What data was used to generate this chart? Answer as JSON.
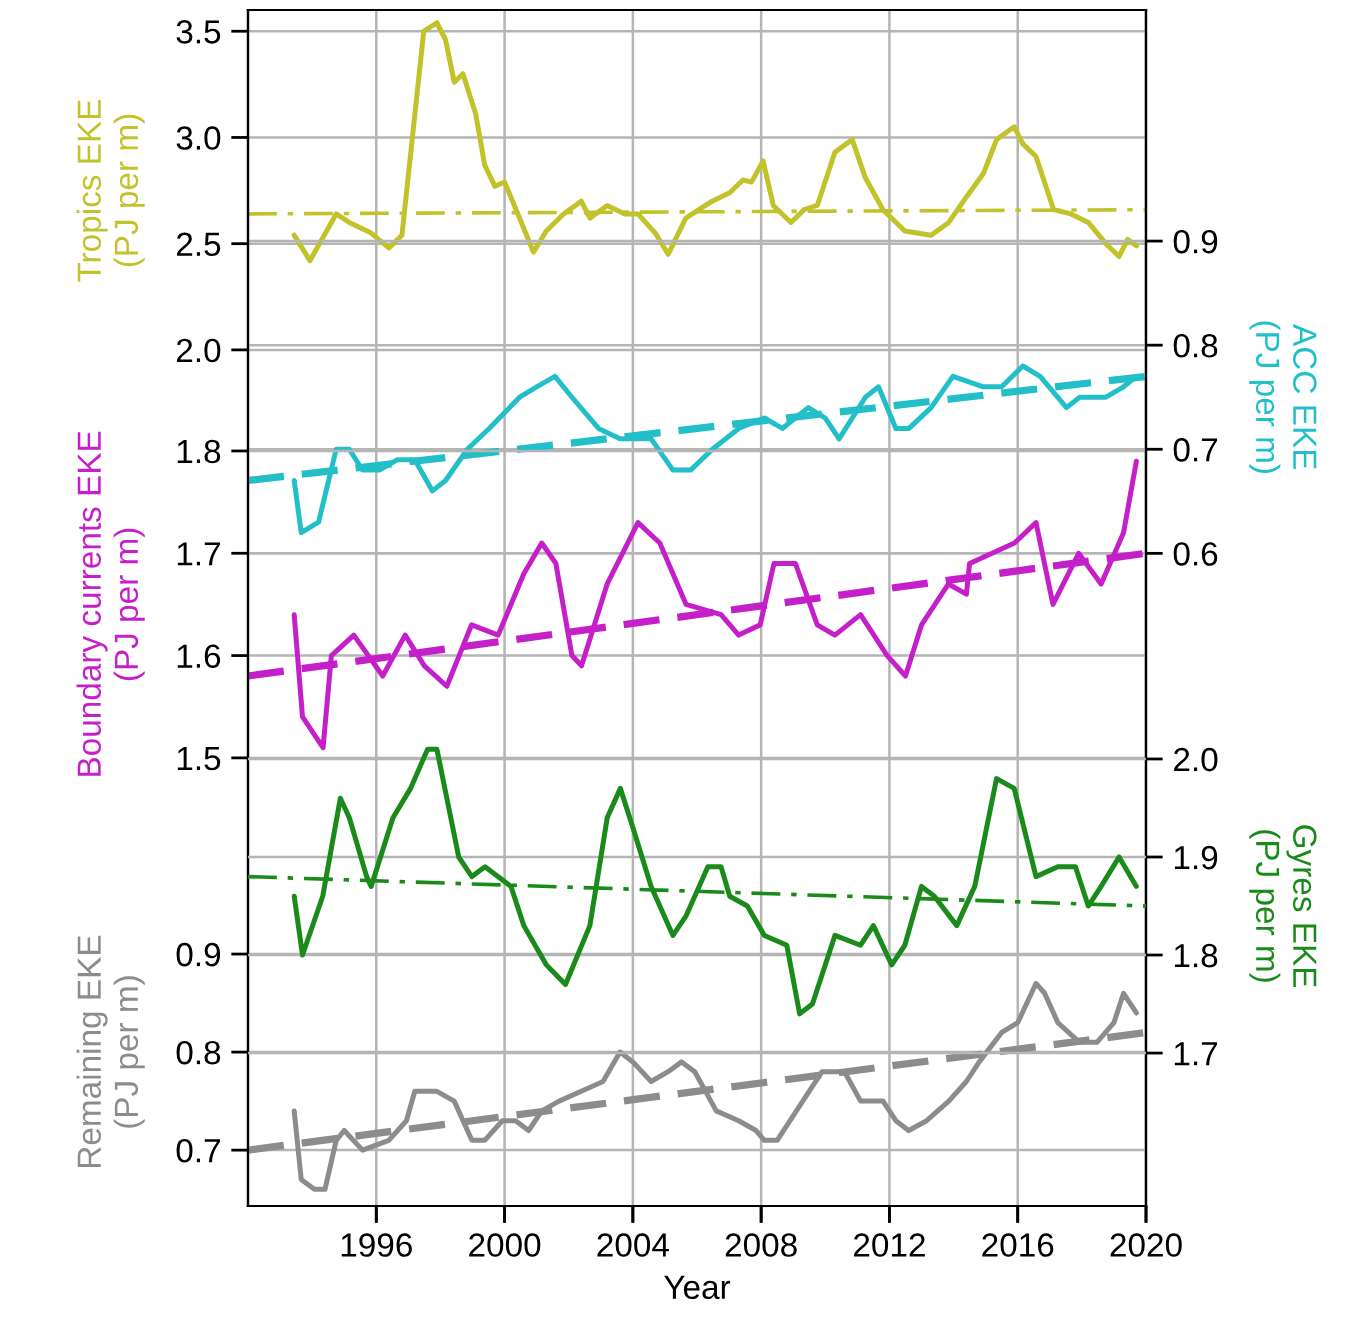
{
  "chart_data": [
    {
      "type": "line",
      "tick_labels": "y",
      "ylabel": "Tropics EKE\n(PJ per m)",
      "y2label": "ACC EKE\n(PJ per m)",
      "y3label": "Boundary currents EKE\n(PJ per m)",
      "xlim": [
        1992,
        2020
      ],
      "xticks": [
        1996,
        2000,
        2004,
        2008,
        2012,
        2016,
        2020
      ],
      "ylim": [
        -2.03,
        3.6
      ],
      "yticks": [
        {
          "value": 2,
          "label": "2.0"
        },
        2.5,
        {
          "value": 3,
          "label": "3.0"
        },
        3.5
      ],
      "y2lim": [
        -0.027,
        1.122
      ],
      "y2ticks": [
        0.6,
        0.7,
        0.8,
        0.9
      ],
      "y3lim": [
        1.062,
        2.231
      ],
      "y3ticks": [
        1.5,
        1.6,
        1.7,
        1.8
      ],
      "grid": true,
      "series": [
        {
          "axis": "y",
          "color": "#c2c22a",
          "x": [
            1993.44,
            1993.93,
            1994.75,
            1995.16,
            1995.84,
            1996.39,
            1996.8,
            1997.48,
            1997.89,
            1998.16,
            1998.43,
            1998.7,
            1999.1,
            1999.38,
            1999.7,
            2000.0,
            2000.47,
            2000.9,
            2001.3,
            2001.84,
            2002.39,
            2002.66,
            2003.2,
            2003.75,
            2004.16,
            2004.7,
            2005.1,
            2005.65,
            2006.47,
            2007.02,
            2007.43,
            2007.7,
            2008.06,
            2008.38,
            2008.93,
            2009.34,
            2009.75,
            2010.3,
            2010.84,
            2011.25,
            2011.8,
            2012.48,
            2013.3,
            2013.85,
            2014.4,
            2014.93,
            2015.34,
            2015.89,
            2016.16,
            2016.57,
            2017.12,
            2017.66,
            2018.2,
            2018.75,
            2019.16,
            2019.43,
            2019.7
          ],
          "values": [
            2.54,
            2.42,
            2.64,
            2.6,
            2.55,
            2.48,
            2.54,
            3.5,
            3.54,
            3.46,
            3.26,
            3.3,
            3.11,
            2.87,
            2.77,
            2.79,
            2.62,
            2.46,
            2.56,
            2.64,
            2.7,
            2.62,
            2.68,
            2.64,
            2.64,
            2.55,
            2.45,
            2.62,
            2.7,
            2.74,
            2.8,
            2.79,
            2.89,
            2.68,
            2.6,
            2.66,
            2.68,
            2.93,
            2.99,
            2.81,
            2.66,
            2.56,
            2.54,
            2.6,
            2.72,
            2.83,
            2.99,
            3.05,
            2.97,
            2.91,
            2.66,
            2.64,
            2.6,
            2.5,
            2.44,
            2.52,
            2.49
          ]
        },
        {
          "axis": "y",
          "color": "#c2c22a",
          "line_style": "dashdot",
          "x": [
            1992,
            2020
          ],
          "values": [
            2.64,
            2.66
          ]
        },
        {
          "axis": "y2",
          "color": "#22bfc9",
          "x": [
            1993.44,
            1993.66,
            1994.2,
            1994.75,
            1995.16,
            1995.57,
            1996.1,
            1996.66,
            1997.2,
            1997.75,
            1998.16,
            1998.84,
            1999.52,
            2000.47,
            2001.0,
            2001.57,
            2002.1,
            2002.93,
            2003.6,
            2004.57,
            2005.25,
            2005.8,
            2006.48,
            2007.3,
            2008.1,
            2008.66,
            2009.47,
            2010.0,
            2010.43,
            2011.25,
            2011.66,
            2012.2,
            2012.61,
            2013.3,
            2013.98,
            2014.93,
            2015.5,
            2016.16,
            2016.7,
            2017.52,
            2017.93,
            2018.75,
            2019.3,
            2019.7
          ],
          "values": [
            0.67,
            0.62,
            0.63,
            0.7,
            0.7,
            0.68,
            0.68,
            0.69,
            0.69,
            0.66,
            0.67,
            0.7,
            0.72,
            0.75,
            0.76,
            0.77,
            0.75,
            0.72,
            0.71,
            0.71,
            0.68,
            0.68,
            0.7,
            0.72,
            0.73,
            0.72,
            0.74,
            0.73,
            0.71,
            0.75,
            0.76,
            0.72,
            0.72,
            0.74,
            0.77,
            0.76,
            0.76,
            0.78,
            0.77,
            0.74,
            0.75,
            0.75,
            0.76,
            0.77
          ]
        },
        {
          "axis": "y2",
          "color": "#22bfc9",
          "line_style": "dashed",
          "x": [
            1992,
            2020
          ],
          "values": [
            0.67,
            0.77
          ]
        },
        {
          "axis": "y3",
          "color": "#c41fc9",
          "x": [
            1993.44,
            1993.7,
            1994.34,
            1994.6,
            1995.3,
            1996.2,
            1996.9,
            1997.5,
            1998.2,
            1998.97,
            1999.8,
            2000.6,
            2001.16,
            2001.6,
            2002.1,
            2002.4,
            2003.2,
            2004.16,
            2004.84,
            2005.66,
            2006.75,
            2007.3,
            2007.97,
            2008.4,
            2009.07,
            2009.75,
            2010.3,
            2011.1,
            2011.93,
            2012.5,
            2013.0,
            2013.84,
            2014.4,
            2014.5,
            2015.2,
            2015.9,
            2016.57,
            2017.1,
            2017.9,
            2018.6,
            2019.3,
            2019.7
          ],
          "values": [
            1.64,
            1.54,
            1.51,
            1.6,
            1.62,
            1.58,
            1.62,
            1.59,
            1.57,
            1.63,
            1.62,
            1.68,
            1.71,
            1.69,
            1.6,
            1.59,
            1.67,
            1.73,
            1.71,
            1.65,
            1.64,
            1.62,
            1.63,
            1.69,
            1.69,
            1.63,
            1.62,
            1.64,
            1.6,
            1.58,
            1.63,
            1.67,
            1.66,
            1.69,
            1.7,
            1.71,
            1.73,
            1.65,
            1.7,
            1.67,
            1.72,
            1.79
          ]
        },
        {
          "axis": "y3",
          "color": "#c41fc9",
          "line_style": "dashed",
          "x": [
            1992,
            2020
          ],
          "values": [
            1.58,
            1.7
          ]
        }
      ]
    },
    {
      "type": "line",
      "xlabel": "Year",
      "ylabel": "Remaining EKE\n(PJ per m)",
      "y2label": "Gyres EKE\n(PJ per m)",
      "xlim": [
        1992,
        2020
      ],
      "xticks": [
        1996,
        2000,
        2004,
        2008,
        2012,
        2016,
        2020
      ],
      "ylim": [
        0.643,
        1.863
      ],
      "yticks": [
        0.7,
        0.8,
        0.9
      ],
      "y2lim": [
        1.544,
        2.764
      ],
      "y2ticks": [
        1.7,
        1.8,
        1.9,
        {
          "value": 2,
          "label": "2.0"
        }
      ],
      "grid": "y",
      "series": [
        {
          "axis": "y2",
          "color": "#1a8a1a",
          "x": [
            1993.44,
            1993.7,
            1994.33,
            1994.88,
            1995.16,
            1995.7,
            1995.84,
            1996.52,
            1997.07,
            1997.6,
            1997.89,
            1998.57,
            1998.98,
            1999.39,
            2000.2,
            2000.6,
            2001.3,
            2001.9,
            2002.66,
            2003.2,
            2003.61,
            2004.0,
            2004.57,
            2005.25,
            2005.66,
            2006.34,
            2006.75,
            2007.02,
            2007.57,
            2008.1,
            2008.8,
            2009.2,
            2009.6,
            2010.3,
            2011.1,
            2011.5,
            2012.07,
            2012.48,
            2013.0,
            2013.4,
            2014.1,
            2014.66,
            2015.34,
            2015.89,
            2016.57,
            2017.25,
            2017.8,
            2018.2,
            2018.6,
            2019.16,
            2019.7
          ],
          "values": [
            1.86,
            1.8,
            1.86,
            1.96,
            1.94,
            1.88,
            1.87,
            1.94,
            1.97,
            2.01,
            2.01,
            1.9,
            1.88,
            1.89,
            1.87,
            1.83,
            1.79,
            1.77,
            1.83,
            1.94,
            1.97,
            1.93,
            1.87,
            1.82,
            1.84,
            1.89,
            1.89,
            1.86,
            1.85,
            1.82,
            1.81,
            1.74,
            1.75,
            1.82,
            1.81,
            1.83,
            1.79,
            1.81,
            1.87,
            1.86,
            1.83,
            1.87,
            1.98,
            1.97,
            1.88,
            1.89,
            1.89,
            1.85,
            1.87,
            1.9,
            1.87
          ]
        },
        {
          "axis": "y2",
          "color": "#1a8a1a",
          "line_style": "dashdot",
          "x": [
            1992,
            2020
          ],
          "values": [
            1.88,
            1.85
          ]
        },
        {
          "axis": "y",
          "color": "#8c8c8c",
          "x": [
            1993.44,
            1993.66,
            1994.07,
            1994.4,
            1994.75,
            1995.0,
            1995.57,
            1996.39,
            1996.94,
            1997.2,
            1997.89,
            1998.43,
            1998.98,
            1999.38,
            1999.93,
            2000.34,
            2000.75,
            2001.16,
            2001.7,
            2002.39,
            2003.07,
            2003.6,
            2004.0,
            2004.57,
            2005.1,
            2005.52,
            2005.93,
            2006.6,
            2007.3,
            2007.84,
            2008.1,
            2008.5,
            2009.1,
            2009.9,
            2010.6,
            2011.1,
            2011.8,
            2012.2,
            2012.6,
            2013.16,
            2013.85,
            2014.4,
            2014.8,
            2015.5,
            2016.0,
            2016.57,
            2016.84,
            2017.25,
            2017.93,
            2018.47,
            2019.0,
            2019.3,
            2019.7
          ],
          "values": [
            0.74,
            0.67,
            0.66,
            0.66,
            0.71,
            0.72,
            0.7,
            0.71,
            0.73,
            0.76,
            0.76,
            0.75,
            0.71,
            0.71,
            0.73,
            0.73,
            0.72,
            0.74,
            0.75,
            0.76,
            0.77,
            0.8,
            0.79,
            0.77,
            0.78,
            0.79,
            0.78,
            0.74,
            0.73,
            0.72,
            0.71,
            0.71,
            0.74,
            0.78,
            0.78,
            0.75,
            0.75,
            0.73,
            0.72,
            0.73,
            0.75,
            0.77,
            0.79,
            0.82,
            0.83,
            0.87,
            0.86,
            0.83,
            0.81,
            0.81,
            0.83,
            0.86,
            0.84
          ]
        },
        {
          "axis": "y",
          "color": "#8c8c8c",
          "line_style": "dashed",
          "x": [
            1992,
            2020
          ],
          "values": [
            0.7,
            0.82
          ]
        }
      ]
    }
  ]
}
